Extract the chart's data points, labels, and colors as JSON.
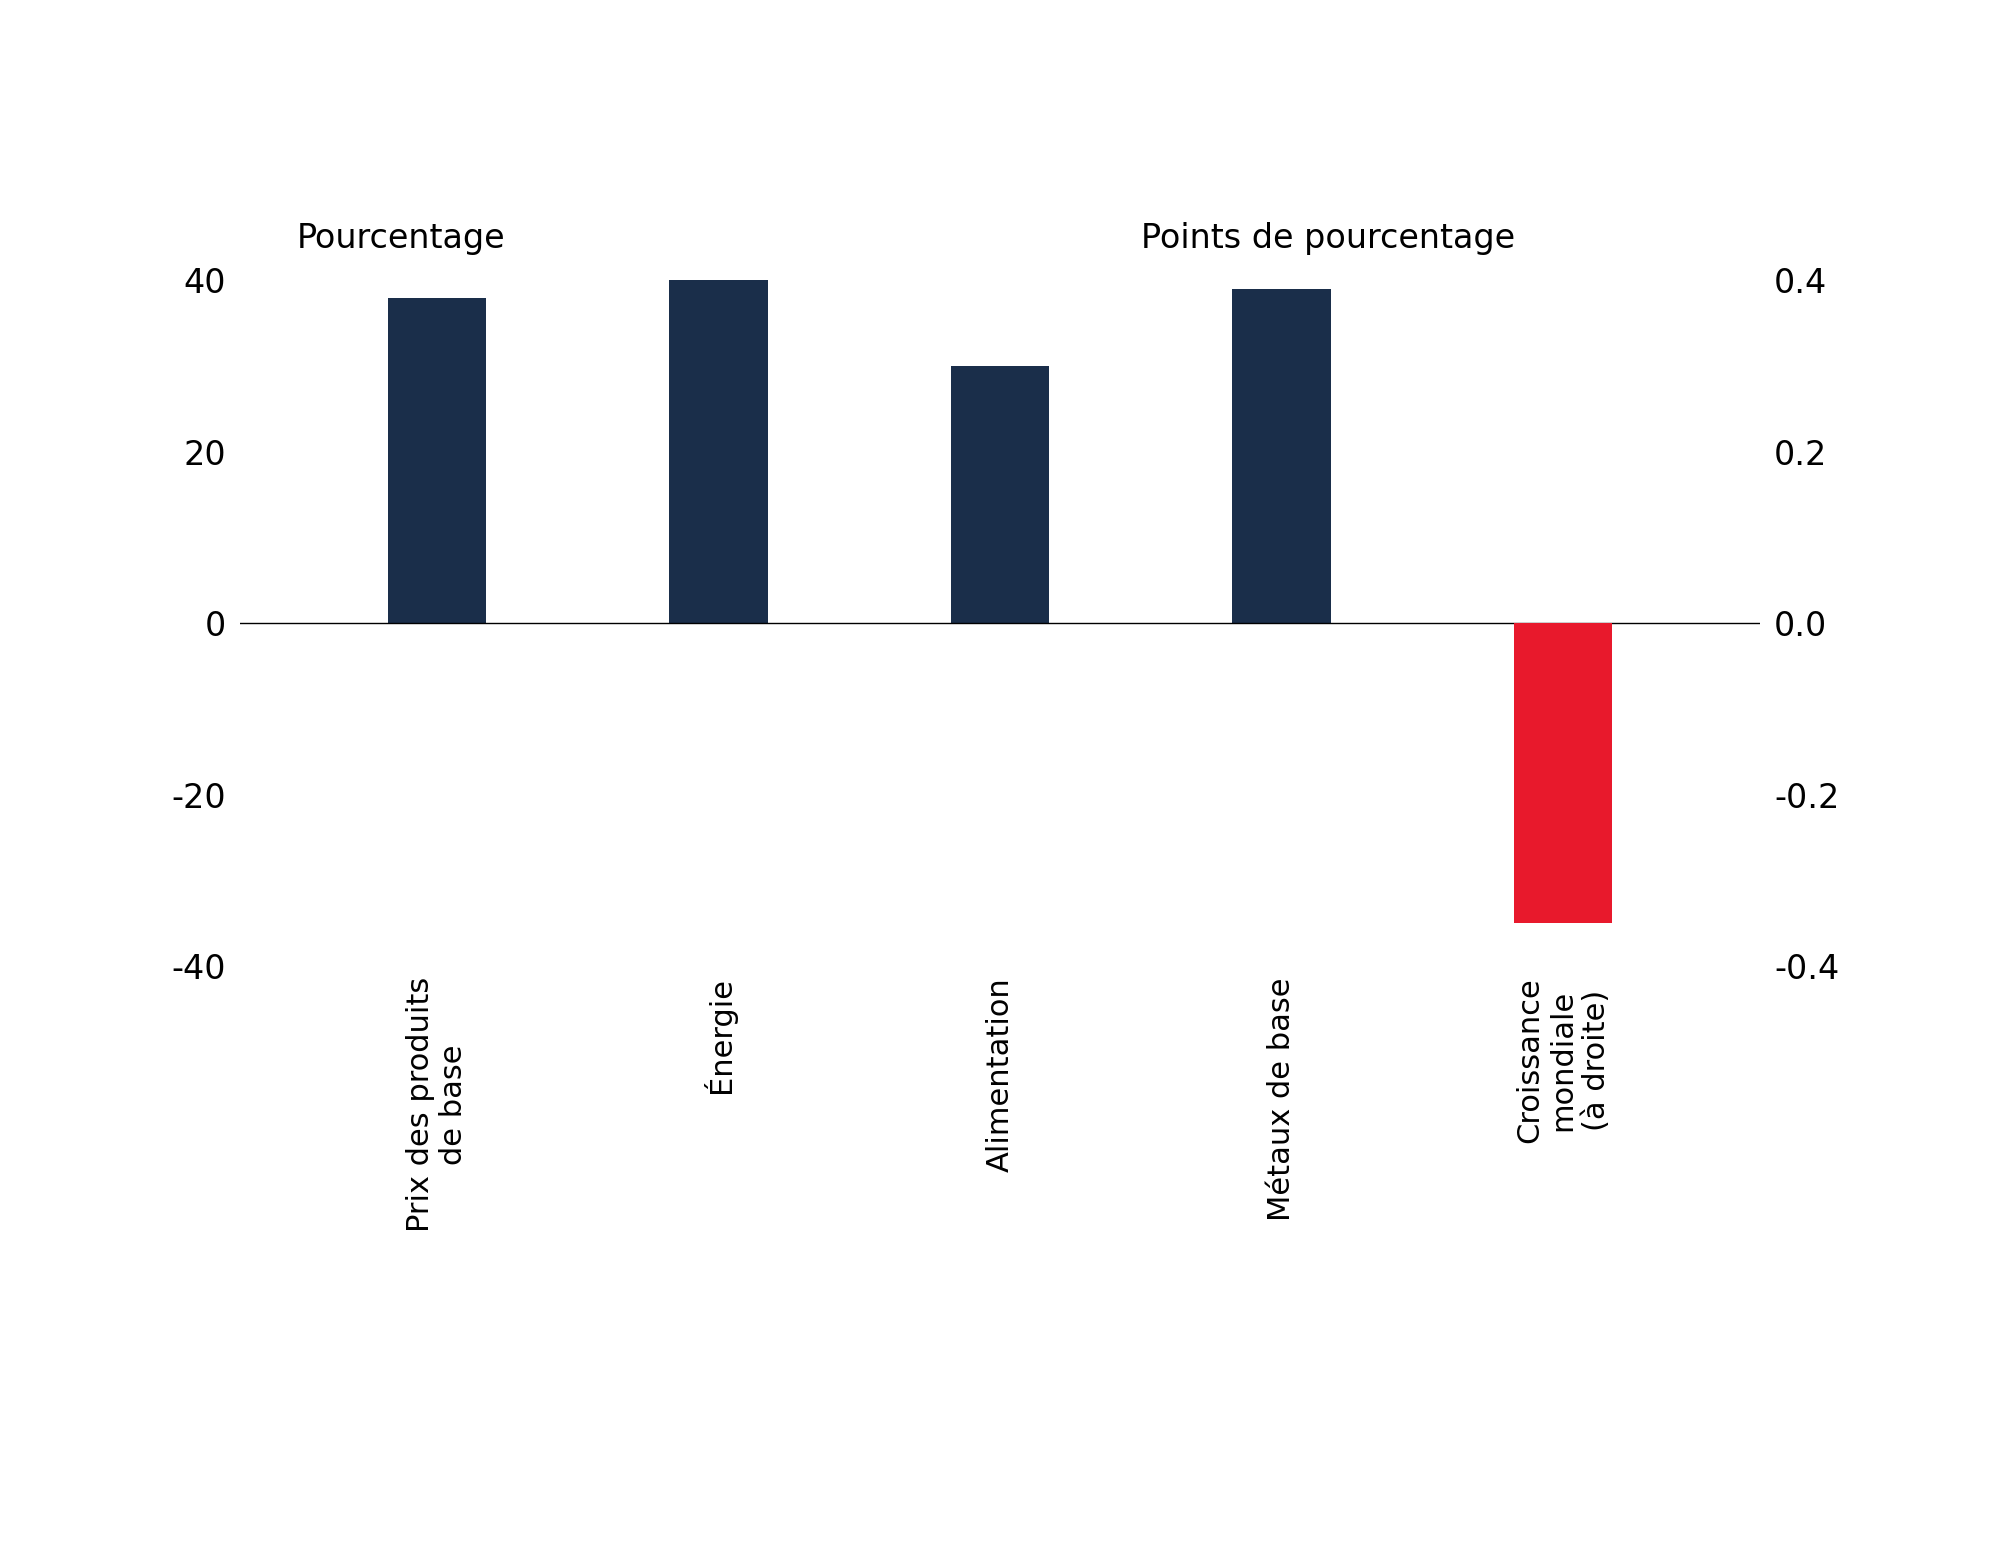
{
  "categories": [
    "Prix des produits\nde base",
    "Énergie",
    "Alimentation",
    "Métaux de base",
    "Croissance\nmondiale\n(à droite)"
  ],
  "values_left": [
    38,
    42,
    30,
    39,
    null
  ],
  "values_right": [
    null,
    null,
    null,
    null,
    -0.35
  ],
  "bar_colors": [
    "#1a2e4a",
    "#1a2e4a",
    "#1a2e4a",
    "#1a2e4a",
    "#e8192c"
  ],
  "ylim_left": [
    -40,
    40
  ],
  "ylim_right": [
    -0.4,
    0.4
  ],
  "yticks_left": [
    -40,
    -20,
    0,
    20,
    40
  ],
  "yticks_right": [
    -0.4,
    -0.2,
    0,
    0.2,
    0.4
  ],
  "ylabel_left": "Pourcentage",
  "ylabel_right": "Points de pourcentage",
  "background_color": "#ffffff",
  "bar_width": 0.35,
  "tick_fontsize": 24,
  "axis_label_fontsize": 24,
  "xticklabel_fontsize": 22
}
